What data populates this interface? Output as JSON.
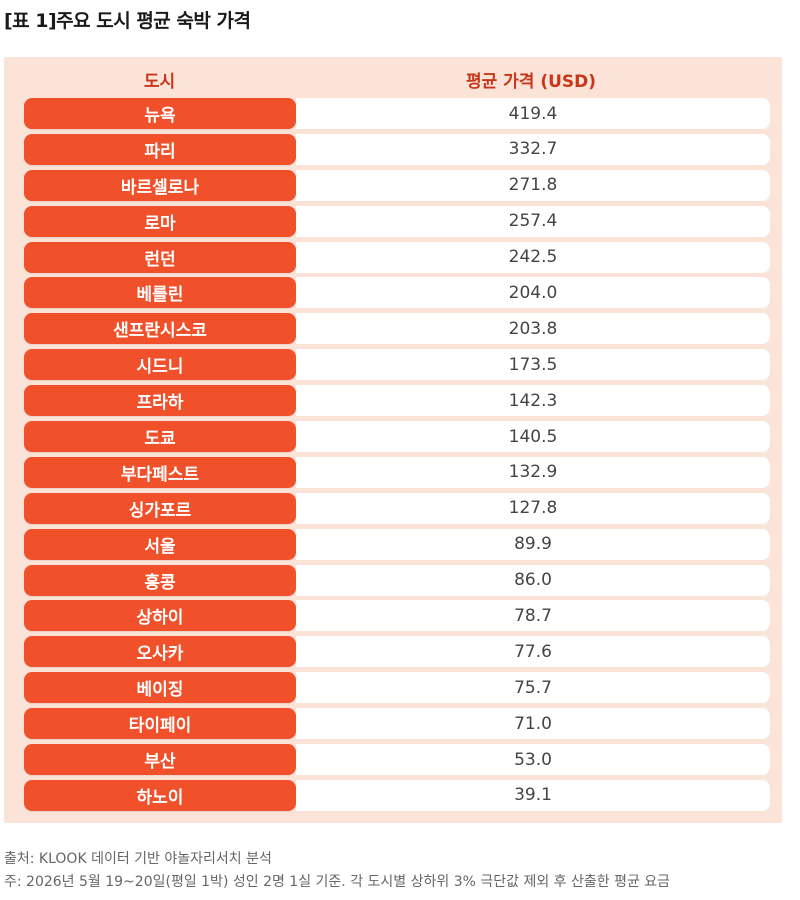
{
  "title": "[표 1]주요 도시 평균 숙박 가격",
  "table": {
    "headers": [
      "도시",
      "평균 가격 (USD)"
    ],
    "rows": [
      {
        "city": "뉴욕",
        "price": "419.4"
      },
      {
        "city": "파리",
        "price": "332.7"
      },
      {
        "city": "바르셀로나",
        "price": "271.8"
      },
      {
        "city": "로마",
        "price": "257.4"
      },
      {
        "city": "런던",
        "price": "242.5"
      },
      {
        "city": "베를린",
        "price": "204.0"
      },
      {
        "city": "샌프란시스코",
        "price": "203.8"
      },
      {
        "city": "시드니",
        "price": "173.5"
      },
      {
        "city": "프라하",
        "price": "142.3"
      },
      {
        "city": "도쿄",
        "price": "140.5"
      },
      {
        "city": "부다페스트",
        "price": "132.9"
      },
      {
        "city": "싱가포르",
        "price": "127.8"
      },
      {
        "city": "서울",
        "price": "89.9"
      },
      {
        "city": "홍콩",
        "price": "86.0"
      },
      {
        "city": "상하이",
        "price": "78.7"
      },
      {
        "city": "오사카",
        "price": "77.6"
      },
      {
        "city": "베이징",
        "price": "75.7"
      },
      {
        "city": "타이페이",
        "price": "71.0"
      },
      {
        "city": "부산",
        "price": "53.0"
      },
      {
        "city": "하노이",
        "price": "39.1"
      }
    ]
  },
  "footnotes": {
    "source": "출처: KLOOK 데이터 기반 야놀자리서치 분석",
    "note": "주: 2026년 5월 19~20일(평일 1박) 성인 2명 1실 기준. 각 도시별 상하위 3% 극단값 제외 후 산출한 평균 요금"
  },
  "colors": {
    "accent": "#f0502a",
    "header_text": "#c8371a",
    "panel_bg": "#fbe3d8"
  }
}
